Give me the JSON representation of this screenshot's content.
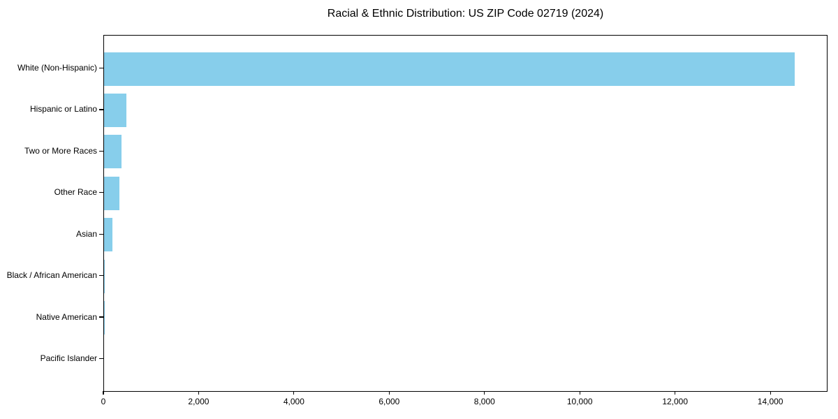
{
  "chart_data": {
    "type": "bar",
    "orientation": "horizontal",
    "title": "Racial & Ethnic Distribution: US ZIP Code 02719 (2024)",
    "xlabel": "",
    "ylabel": "",
    "categories": [
      "White (Non-Hispanic)",
      "Hispanic or Latino",
      "Two or More Races",
      "Other Race",
      "Asian",
      "Black / African American",
      "Native American",
      "Pacific Islander"
    ],
    "values": [
      14490,
      470,
      360,
      325,
      175,
      20,
      8,
      0
    ],
    "xlim": [
      0,
      15200
    ],
    "x_ticks": [
      0,
      2000,
      4000,
      6000,
      8000,
      10000,
      12000,
      14000
    ],
    "x_tick_labels": [
      "0",
      "2,000",
      "4,000",
      "6,000",
      "8,000",
      "10,000",
      "12,000",
      "14,000"
    ],
    "grid": false,
    "legend": null,
    "bar_color": "#87CEEB"
  },
  "colors": {
    "bar": "#87CEEB",
    "axis": "#000000",
    "text": "#000000",
    "background": "#ffffff"
  }
}
